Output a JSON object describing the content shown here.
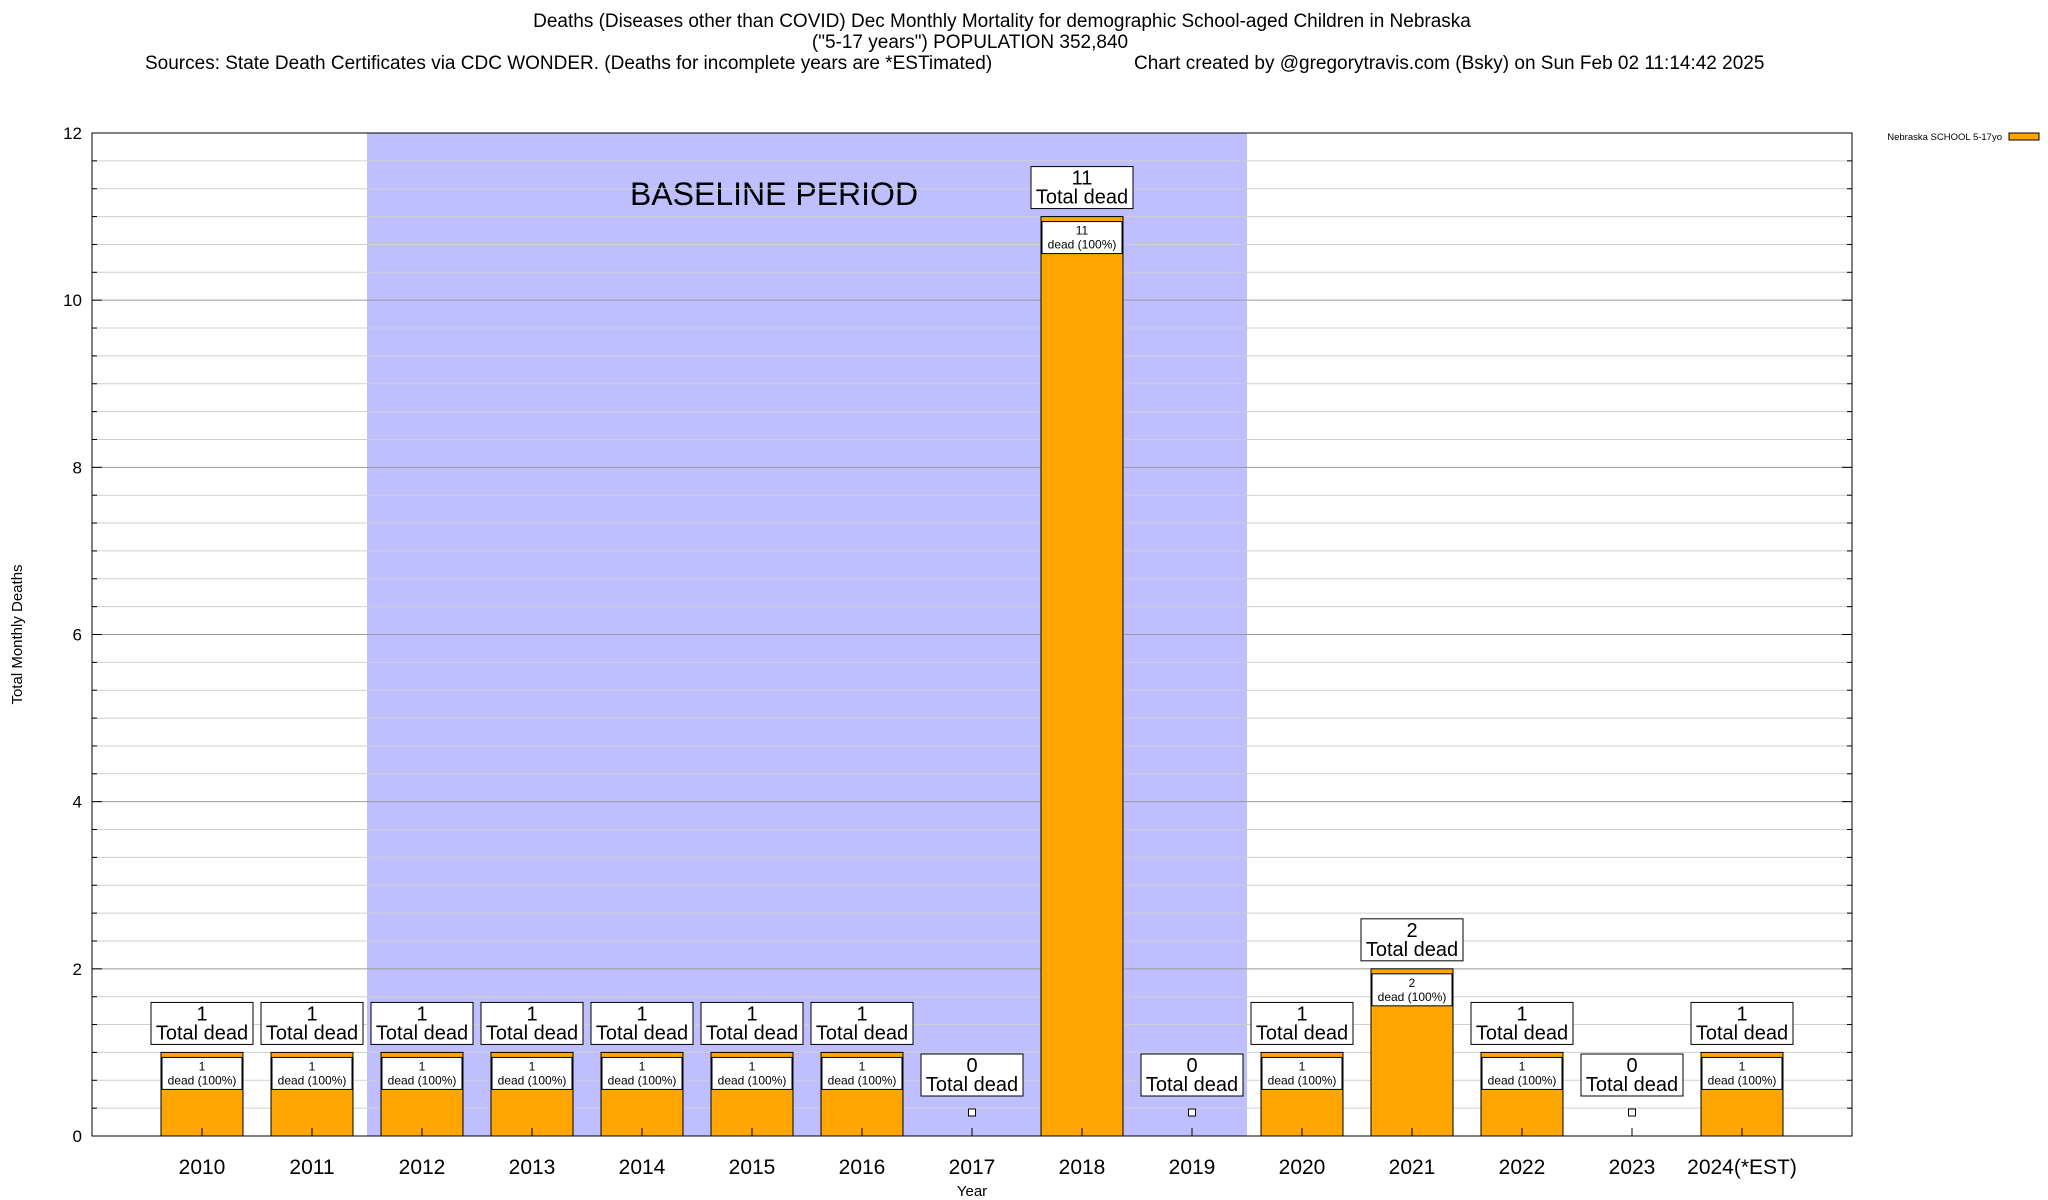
{
  "header": {
    "title_line1": "Deaths (Diseases other than COVID) Dec Monthly Mortality for demographic School-aged Children in Nebraska",
    "title_line2": "(\"5-17 years\") POPULATION 352,840",
    "sources": "Sources: State Death Certificates via CDC WONDER. (Deaths for incomplete years are *ESTimated)",
    "credit": "Chart created by @gregorytravis.com (Bsky) on Sun Feb 02 11:14:42 2025"
  },
  "chart_data": {
    "type": "bar",
    "categories": [
      "2010",
      "2011",
      "2012",
      "2013",
      "2014",
      "2015",
      "2016",
      "2017",
      "2018",
      "2019",
      "2020",
      "2021",
      "2022",
      "2023",
      "2024(*EST)"
    ],
    "series": [
      {
        "name": "Nebraska SCHOOL 5-17yo",
        "values": [
          1,
          1,
          1,
          1,
          1,
          1,
          1,
          0,
          11,
          0,
          1,
          2,
          1,
          0,
          1
        ],
        "color": "#ffa500"
      }
    ],
    "total_labels": [
      "Total dead",
      "Total dead",
      "Total dead",
      "Total dead",
      "Total dead",
      "Total dead",
      "Total dead",
      "Total dead",
      "Total dead",
      "Total dead",
      "Total dead",
      "Total dead",
      "Total dead",
      "Total dead",
      "Total dead"
    ],
    "segment_labels": [
      "dead (100%)",
      "dead (100%)",
      "dead (100%)",
      "dead (100%)",
      "dead (100%)",
      "dead (100%)",
      "dead (100%)",
      "",
      "dead (100%)",
      "",
      "dead (100%)",
      "dead (100%)",
      "dead (100%)",
      "",
      "dead (100%)"
    ],
    "xlabel": "Year",
    "ylabel": "Total Monthly Deaths",
    "ylim": [
      0,
      12
    ],
    "yticks": [
      0,
      2,
      4,
      6,
      8,
      10,
      12
    ],
    "grid": true,
    "legend_position": "top-right",
    "baseline": {
      "label": "BASELINE PERIOD",
      "start": "2012",
      "end": "2019",
      "color": "#bfbfff"
    }
  }
}
